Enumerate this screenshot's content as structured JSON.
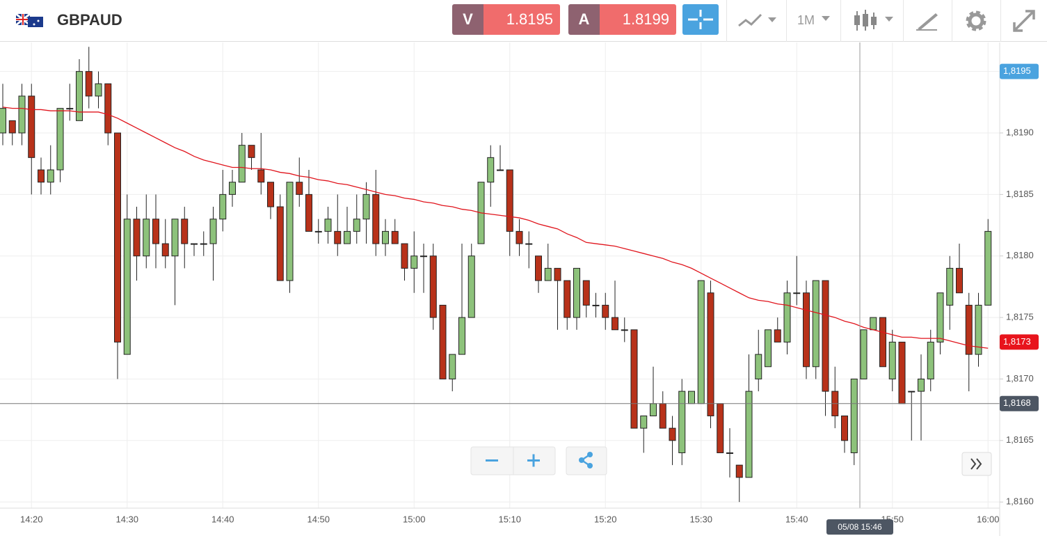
{
  "toolbar": {
    "symbol": "GBPAUD",
    "sell_label": "V",
    "sell_price": "1.8195",
    "buy_label": "A",
    "buy_price": "1.8199",
    "timeframe": "1M"
  },
  "chart_data": {
    "type": "candlestick",
    "categories": [
      null,
      null,
      null,
      "14:20",
      null,
      null,
      null,
      null,
      null,
      null,
      null,
      null,
      null,
      "14:30",
      null,
      null,
      null,
      null,
      null,
      null,
      null,
      null,
      null,
      "14:40",
      null,
      null,
      null,
      null,
      null,
      null,
      null,
      null,
      null,
      "14:50",
      null,
      null,
      null,
      null,
      null,
      null,
      null,
      null,
      null,
      "15:00",
      null,
      null,
      null,
      null,
      null,
      null,
      null,
      null,
      null,
      "15:10",
      null,
      null,
      null,
      null,
      null,
      null,
      null,
      null,
      null,
      "15:20",
      null,
      null,
      null,
      null,
      null,
      null,
      null,
      null,
      null,
      "15:30",
      null,
      null,
      null,
      null,
      null,
      null,
      null,
      null,
      null,
      "15:40",
      null,
      null,
      null,
      null,
      null,
      null,
      null,
      null,
      null,
      "15:50",
      null,
      null,
      null,
      null,
      null,
      null,
      null,
      null,
      null,
      "16:00"
    ],
    "open": [
      1.819,
      1.8191,
      1.819,
      1.8193,
      1.8187,
      1.8186,
      1.8187,
      1.8192,
      1.8191,
      1.8195,
      1.8193,
      1.8194,
      1.819,
      1.8172,
      1.8183,
      1.818,
      1.8183,
      1.8181,
      1.818,
      1.8183,
      1.8181,
      1.8181,
      1.8181,
      1.8183,
      1.8185,
      1.8186,
      1.8189,
      1.8187,
      1.8186,
      1.8184,
      1.8178,
      1.8186,
      1.8185,
      1.8182,
      1.8182,
      1.8182,
      1.8181,
      1.8182,
      1.8183,
      1.8185,
      1.8181,
      1.8182,
      1.8181,
      1.8179,
      1.818,
      1.818,
      1.8176,
      1.817,
      1.8172,
      1.8175,
      1.8181,
      1.8186,
      1.8187,
      1.8187,
      1.8182,
      1.8181,
      1.818,
      1.8178,
      1.8179,
      1.8178,
      1.8175,
      1.8178,
      1.8176,
      1.8176,
      1.8175,
      1.8174,
      1.8174,
      1.8166,
      1.8167,
      1.8168,
      1.8166,
      1.8164,
      1.8168,
      1.8168,
      1.8177,
      1.8168,
      1.8164,
      1.8163,
      1.8162,
      1.817,
      1.8171,
      1.8174,
      1.8173,
      1.8177,
      1.8177,
      1.8171,
      1.8178,
      1.8169,
      1.8167,
      1.8164,
      1.817,
      1.8174,
      1.8175,
      1.817,
      1.8173,
      1.8169,
      1.8169,
      1.817,
      1.8173,
      1.8176,
      1.8179,
      1.8176,
      1.8172,
      1.8176
    ],
    "high": [
      1.8194,
      1.8191,
      1.8194,
      1.8194,
      1.8188,
      1.8189,
      1.8192,
      1.8194,
      1.8196,
      1.8197,
      1.8195,
      1.8194,
      1.819,
      1.8185,
      1.8184,
      1.8185,
      1.8185,
      1.8183,
      1.8183,
      1.8184,
      1.8181,
      1.8182,
      1.8184,
      1.8187,
      1.8187,
      1.819,
      1.8189,
      1.819,
      1.8186,
      1.8185,
      1.8186,
      1.8188,
      1.8187,
      1.8183,
      1.8184,
      1.8185,
      1.8184,
      1.8185,
      1.8186,
      1.8187,
      1.8183,
      1.8183,
      1.8181,
      1.8182,
      1.8181,
      1.8181,
      1.8176,
      1.8172,
      1.8181,
      1.8181,
      1.8186,
      1.8189,
      1.8189,
      1.8187,
      1.8183,
      1.8182,
      1.818,
      1.8181,
      1.8179,
      1.8178,
      1.8179,
      1.8178,
      1.8177,
      1.8177,
      1.8178,
      1.8175,
      1.8174,
      1.8167,
      1.8171,
      1.8169,
      1.8167,
      1.817,
      1.8169,
      1.8178,
      1.8178,
      1.8168,
      1.8166,
      1.8163,
      1.8172,
      1.8174,
      1.8174,
      1.8175,
      1.8178,
      1.818,
      1.8178,
      1.8178,
      1.8178,
      1.8171,
      1.8167,
      1.817,
      1.8174,
      1.8175,
      1.8175,
      1.8174,
      1.8173,
      1.8169,
      1.8172,
      1.8174,
      1.8177,
      1.818,
      1.8181,
      1.8177,
      1.8177,
      1.8183
    ],
    "low": [
      1.8189,
      1.8189,
      1.8189,
      1.8185,
      1.8185,
      1.8185,
      1.8186,
      1.8191,
      1.8191,
      1.8192,
      1.8192,
      1.8189,
      1.817,
      1.8172,
      1.8178,
      1.8179,
      1.8179,
      1.8179,
      1.8176,
      1.8179,
      1.818,
      1.818,
      1.8178,
      1.8182,
      1.8184,
      1.8186,
      1.8187,
      1.8185,
      1.8183,
      1.8178,
      1.8177,
      1.8184,
      1.8182,
      1.8181,
      1.8181,
      1.818,
      1.8181,
      1.8181,
      1.8181,
      1.818,
      1.818,
      1.8181,
      1.8178,
      1.8177,
      1.8177,
      1.8174,
      1.817,
      1.8169,
      1.8172,
      1.8175,
      1.8181,
      1.8184,
      1.8187,
      1.818,
      1.818,
      1.8179,
      1.8177,
      1.8178,
      1.8174,
      1.8174,
      1.8174,
      1.8175,
      1.8175,
      1.8174,
      1.8174,
      1.8173,
      1.8166,
      1.8164,
      1.8167,
      1.8166,
      1.8163,
      1.8163,
      1.8168,
      1.8168,
      1.8166,
      1.8164,
      1.8162,
      1.816,
      1.8162,
      1.8169,
      1.8171,
      1.8173,
      1.8172,
      1.8176,
      1.817,
      1.817,
      1.8167,
      1.8166,
      1.8164,
      1.8163,
      1.817,
      1.8174,
      1.8171,
      1.8169,
      1.8168,
      1.8165,
      1.8165,
      1.8169,
      1.8172,
      1.8174,
      1.8177,
      1.8169,
      1.8171,
      1.8176
    ],
    "close": [
      1.8192,
      1.819,
      1.8193,
      1.8188,
      1.8186,
      1.8187,
      1.8192,
      1.8192,
      1.8195,
      1.8193,
      1.8194,
      1.819,
      1.8173,
      1.8183,
      1.818,
      1.8183,
      1.8181,
      1.818,
      1.8183,
      1.8181,
      1.8181,
      1.8181,
      1.8183,
      1.8185,
      1.8186,
      1.8189,
      1.8188,
      1.8186,
      1.8184,
      1.8178,
      1.8186,
      1.8185,
      1.8182,
      1.8182,
      1.8183,
      1.8181,
      1.8182,
      1.8183,
      1.8185,
      1.8181,
      1.8182,
      1.8181,
      1.8179,
      1.818,
      1.818,
      1.8175,
      1.817,
      1.8172,
      1.8175,
      1.818,
      1.8186,
      1.8188,
      1.8187,
      1.8182,
      1.8181,
      1.8181,
      1.8178,
      1.8179,
      1.8178,
      1.8175,
      1.8179,
      1.8176,
      1.8176,
      1.8175,
      1.8174,
      1.8174,
      1.8166,
      1.8167,
      1.8168,
      1.8166,
      1.8165,
      1.8169,
      1.8169,
      1.8178,
      1.8167,
      1.8164,
      1.8164,
      1.8162,
      1.8169,
      1.8172,
      1.8174,
      1.8173,
      1.8177,
      1.8177,
      1.8171,
      1.8178,
      1.8169,
      1.8167,
      1.8165,
      1.817,
      1.8174,
      1.8175,
      1.8171,
      1.8173,
      1.8168,
      1.8169,
      1.817,
      1.8173,
      1.8177,
      1.8179,
      1.8177,
      1.8172,
      1.8176,
      1.8182
    ],
    "up_color": "#8dc27b",
    "down_color": "#b8321a",
    "moving_average": {
      "color": "#e0141c",
      "values": [
        1.81921,
        1.8192,
        1.8192,
        1.81919,
        1.81919,
        1.81918,
        1.81918,
        1.81918,
        1.81917,
        1.81917,
        1.81917,
        1.81915,
        1.81912,
        1.81908,
        1.81904,
        1.819,
        1.81896,
        1.81892,
        1.81888,
        1.81885,
        1.81881,
        1.81878,
        1.81876,
        1.81874,
        1.81872,
        1.81872,
        1.81871,
        1.81871,
        1.8187,
        1.81868,
        1.81867,
        1.81865,
        1.81864,
        1.81862,
        1.81861,
        1.81859,
        1.81858,
        1.81856,
        1.81854,
        1.81852,
        1.8185,
        1.81849,
        1.81847,
        1.81846,
        1.81844,
        1.81843,
        1.81841,
        1.8184,
        1.81838,
        1.81837,
        1.81835,
        1.81834,
        1.81833,
        1.81832,
        1.81831,
        1.81829,
        1.81826,
        1.81824,
        1.81822,
        1.81818,
        1.81815,
        1.81811,
        1.8181,
        1.81809,
        1.81808,
        1.81806,
        1.81804,
        1.81802,
        1.818,
        1.81798,
        1.81795,
        1.81793,
        1.8179,
        1.81786,
        1.81782,
        1.81778,
        1.81774,
        1.8177,
        1.81766,
        1.81764,
        1.81763,
        1.81761,
        1.8176,
        1.81758,
        1.81756,
        1.81754,
        1.81752,
        1.8175,
        1.81747,
        1.81745,
        1.81742,
        1.8174,
        1.81738,
        1.81736,
        1.81734,
        1.81734,
        1.81733,
        1.81733,
        1.81733,
        1.81731,
        1.81729,
        1.81727,
        1.81726,
        1.81725
      ]
    },
    "ylim": [
      1.81595,
      1.81973
    ],
    "yticks": [
      {
        "value": 1.816,
        "label": "1,8160"
      },
      {
        "value": 1.8165,
        "label": "1,8165"
      },
      {
        "value": 1.817,
        "label": "1,8170"
      },
      {
        "value": 1.8175,
        "label": "1,8175"
      },
      {
        "value": 1.818,
        "label": "1,8180"
      },
      {
        "value": 1.8185,
        "label": "1,8185"
      },
      {
        "value": 1.819,
        "label": "1,8190"
      },
      {
        "value": 1.8195,
        "label": "1,8195"
      }
    ],
    "grid": true,
    "price_markers": [
      {
        "value": 1.8195,
        "label": "1,8195",
        "color": "#4aa3df"
      },
      {
        "value": 1.8173,
        "label": "1,8173",
        "color": "#e8141c"
      }
    ],
    "crosshair": {
      "value": 1.8168,
      "label": "1,8168",
      "time_label": "05/08 15:46"
    }
  }
}
